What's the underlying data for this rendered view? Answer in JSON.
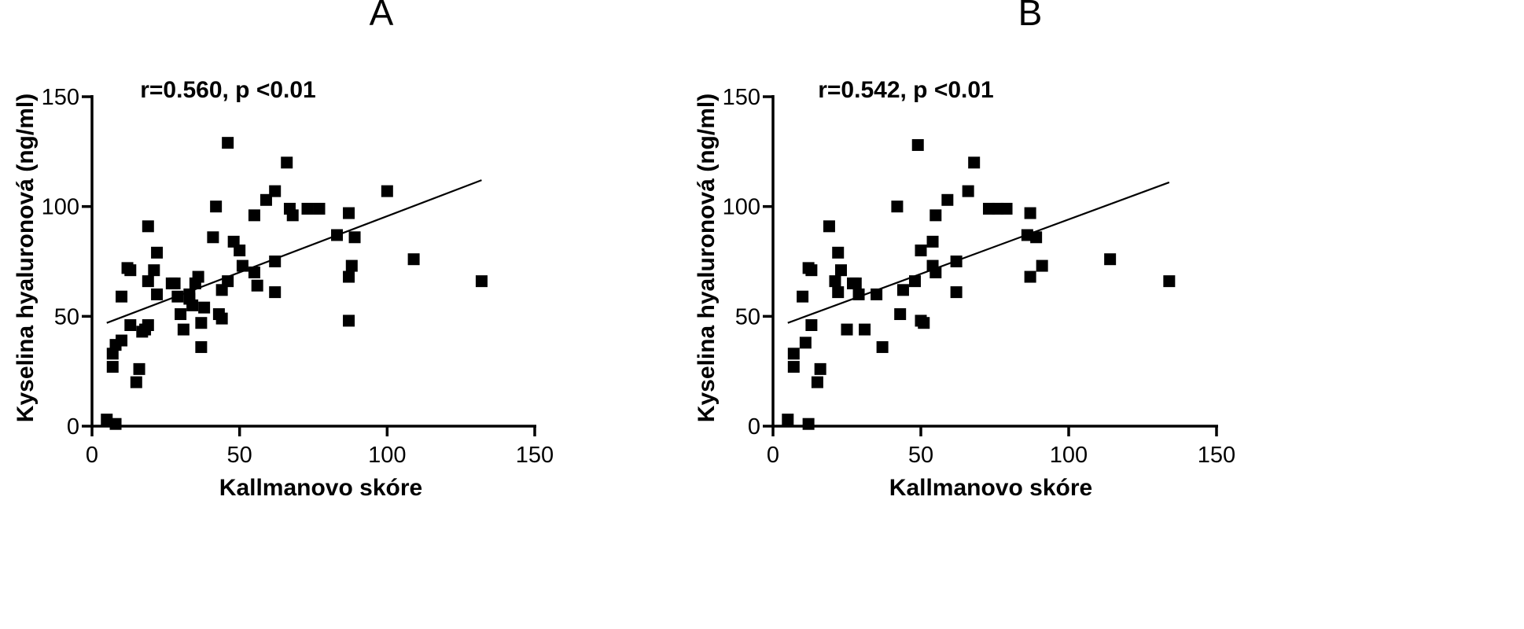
{
  "chart_data": [
    {
      "type": "scatter",
      "panel": "A",
      "title": "A",
      "annotation": "r=0.560, p <0.01",
      "xlabel": "Kallmanovo skóre",
      "ylabel": "Kyselina hyaluronová (ng/ml)",
      "xlim": [
        0,
        150
      ],
      "ylim": [
        0,
        150
      ],
      "xticks": [
        0,
        50,
        100,
        150
      ],
      "yticks": [
        0,
        50,
        100,
        150
      ],
      "grid": false,
      "regression_line": {
        "x": [
          5,
          132
        ],
        "y": [
          47,
          112
        ]
      },
      "points": [
        [
          5,
          3
        ],
        [
          8,
          1
        ],
        [
          7,
          27
        ],
        [
          7,
          33
        ],
        [
          8,
          37
        ],
        [
          10,
          39
        ],
        [
          10,
          59
        ],
        [
          12,
          72
        ],
        [
          13,
          71
        ],
        [
          13,
          46
        ],
        [
          15,
          20
        ],
        [
          16,
          26
        ],
        [
          17,
          43
        ],
        [
          18,
          44
        ],
        [
          19,
          46
        ],
        [
          19,
          66
        ],
        [
          19,
          91
        ],
        [
          21,
          71
        ],
        [
          22,
          79
        ],
        [
          22,
          60
        ],
        [
          27,
          65
        ],
        [
          28,
          65
        ],
        [
          29,
          59
        ],
        [
          30,
          51
        ],
        [
          31,
          44
        ],
        [
          33,
          60
        ],
        [
          33,
          58
        ],
        [
          34,
          55
        ],
        [
          35,
          65
        ],
        [
          36,
          68
        ],
        [
          37,
          47
        ],
        [
          37,
          36
        ],
        [
          38,
          54
        ],
        [
          41,
          86
        ],
        [
          42,
          100
        ],
        [
          43,
          51
        ],
        [
          44,
          62
        ],
        [
          44,
          49
        ],
        [
          46,
          66
        ],
        [
          46,
          129
        ],
        [
          48,
          84
        ],
        [
          50,
          80
        ],
        [
          51,
          73
        ],
        [
          55,
          70
        ],
        [
          55,
          96
        ],
        [
          56,
          64
        ],
        [
          59,
          103
        ],
        [
          62,
          107
        ],
        [
          62,
          75
        ],
        [
          62,
          61
        ],
        [
          66,
          120
        ],
        [
          67,
          99
        ],
        [
          68,
          96
        ],
        [
          73,
          99
        ],
        [
          77,
          99
        ],
        [
          83,
          87
        ],
        [
          87,
          97
        ],
        [
          87,
          68
        ],
        [
          87,
          48
        ],
        [
          88,
          73
        ],
        [
          89,
          86
        ],
        [
          100,
          107
        ],
        [
          109,
          76
        ],
        [
          132,
          66
        ]
      ]
    },
    {
      "type": "scatter",
      "panel": "B",
      "title": "B",
      "annotation": "r=0.542, p <0.01",
      "xlabel": "Kallmanovo skóre",
      "ylabel": "Kyselina hyaluronová (ng/ml)",
      "xlim": [
        0,
        150
      ],
      "ylim": [
        0,
        150
      ],
      "xticks": [
        0,
        50,
        100,
        150
      ],
      "yticks": [
        0,
        50,
        100,
        150
      ],
      "grid": false,
      "regression_line": {
        "x": [
          5,
          134
        ],
        "y": [
          47,
          111
        ]
      },
      "points": [
        [
          5,
          3
        ],
        [
          7,
          27
        ],
        [
          7,
          33
        ],
        [
          10,
          59
        ],
        [
          11,
          38
        ],
        [
          12,
          72
        ],
        [
          13,
          71
        ],
        [
          12,
          1
        ],
        [
          13,
          46
        ],
        [
          15,
          20
        ],
        [
          16,
          26
        ],
        [
          19,
          91
        ],
        [
          21,
          66
        ],
        [
          22,
          79
        ],
        [
          22,
          61
        ],
        [
          23,
          71
        ],
        [
          25,
          44
        ],
        [
          27,
          65
        ],
        [
          28,
          65
        ],
        [
          29,
          60
        ],
        [
          31,
          44
        ],
        [
          35,
          60
        ],
        [
          37,
          36
        ],
        [
          42,
          100
        ],
        [
          43,
          51
        ],
        [
          44,
          62
        ],
        [
          48,
          66
        ],
        [
          49,
          128
        ],
        [
          50,
          80
        ],
        [
          50,
          48
        ],
        [
          51,
          47
        ],
        [
          54,
          84
        ],
        [
          54,
          73
        ],
        [
          55,
          70
        ],
        [
          55,
          96
        ],
        [
          59,
          103
        ],
        [
          62,
          75
        ],
        [
          62,
          61
        ],
        [
          66,
          107
        ],
        [
          68,
          120
        ],
        [
          73,
          99
        ],
        [
          76,
          99
        ],
        [
          79,
          99
        ],
        [
          86,
          87
        ],
        [
          87,
          97
        ],
        [
          87,
          68
        ],
        [
          89,
          86
        ],
        [
          91,
          73
        ],
        [
          114,
          76
        ],
        [
          134,
          66
        ]
      ]
    }
  ]
}
